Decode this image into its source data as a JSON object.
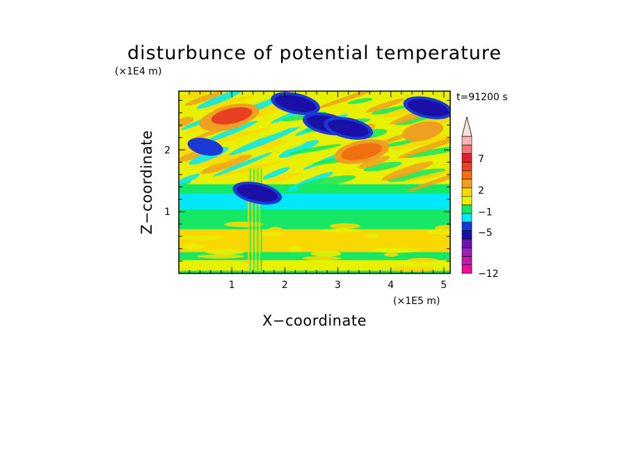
{
  "chart_data": {
    "type": "heatmap",
    "title": "disturbunce of potential temperature",
    "xlabel": "X−coordinate",
    "ylabel": "Z−coordinate",
    "x_scale_label": "(×1E5 m)",
    "y_scale_label": "(×1E4 m)",
    "time_label": "t=91200 s",
    "xlim": [
      0,
      5.12
    ],
    "ylim": [
      0,
      2.95
    ],
    "x_ticks": [
      1,
      2,
      3,
      4,
      5
    ],
    "x_tick_labels": [
      "1",
      "2",
      "3",
      "4",
      "5"
    ],
    "y_ticks": [
      1,
      2
    ],
    "y_tick_labels": [
      "1",
      "2"
    ],
    "grid": false,
    "colorbar": {
      "tick_labels": [
        "−12",
        "−5",
        "−1",
        "2",
        "7"
      ],
      "colors": [
        "#e8109a",
        "#c418a8",
        "#9a20b4",
        "#6a14b0",
        "#1a10a8",
        "#1a3ad8",
        "#00e8f8",
        "#14e864",
        "#e8f000",
        "#f8d800",
        "#f0a020",
        "#f07010",
        "#e84020",
        "#e0202a",
        "#f07878",
        "#f8b4b4",
        "#ffe0e0"
      ],
      "extend_top": true
    },
    "bands": [
      {
        "z_range": [
          0.0,
          0.05
        ],
        "value": 0
      },
      {
        "z_range": [
          0.05,
          0.22
        ],
        "value": 1
      },
      {
        "z_range": [
          0.22,
          0.35
        ],
        "value": 0
      },
      {
        "z_range": [
          0.35,
          0.72
        ],
        "value": 2
      },
      {
        "z_range": [
          0.72,
          0.84
        ],
        "value": 0
      },
      {
        "z_range": [
          0.84,
          1.04
        ],
        "value": -0.5
      },
      {
        "z_range": [
          1.04,
          1.3
        ],
        "value": -1
      },
      {
        "z_range": [
          1.3,
          1.45
        ],
        "value": -0.5
      },
      {
        "z_range": [
          1.45,
          1.8
        ],
        "value": 1
      },
      {
        "z_range": [
          1.8,
          2.3
        ],
        "value": 1
      },
      {
        "z_range": [
          2.3,
          2.95
        ],
        "value": 1
      }
    ],
    "features": [
      {
        "x": 0.9,
        "z": 2.5,
        "value": 4
      },
      {
        "x": 1.0,
        "z": 2.55,
        "value": 5
      },
      {
        "x": 0.5,
        "z": 2.05,
        "value": -3
      },
      {
        "x": 2.2,
        "z": 2.75,
        "value": -5
      },
      {
        "x": 2.8,
        "z": 2.42,
        "value": -6
      },
      {
        "x": 3.2,
        "z": 2.35,
        "value": -5
      },
      {
        "x": 4.7,
        "z": 2.68,
        "value": -6
      },
      {
        "x": 3.45,
        "z": 1.97,
        "value": 4
      },
      {
        "x": 4.6,
        "z": 2.3,
        "value": 3
      },
      {
        "x": 1.48,
        "z": 1.3,
        "value": -6
      }
    ]
  }
}
